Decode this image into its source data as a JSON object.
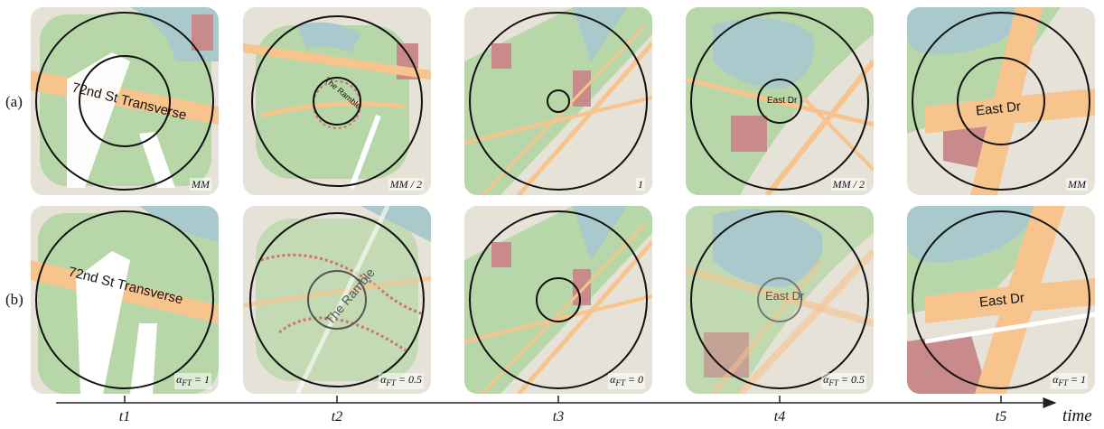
{
  "rows": [
    {
      "label": "(a)"
    },
    {
      "label": "(b)"
    }
  ],
  "captions_a": [
    "MM",
    "MM / 2",
    "1",
    "MM / 2",
    "MM"
  ],
  "captions_b": [
    {
      "alpha": "α",
      "sub": "FT",
      "value": " = 1"
    },
    {
      "alpha": "α",
      "sub": "FT",
      "value": " = 0.5"
    },
    {
      "alpha": "α",
      "sub": "FT",
      "value": " = 0"
    },
    {
      "alpha": "α",
      "sub": "FT",
      "value": " = 0.5"
    },
    {
      "alpha": "α",
      "sub": "FT",
      "value": " = 1"
    }
  ],
  "road_labels": {
    "a1": "72nd St Transverse",
    "b1": "72nd St Transverse",
    "a2": "The Ramble",
    "b2": "The Ramble",
    "a4": "East Dr",
    "b4": "East Dr",
    "a5": "East Dr",
    "b5": "East Dr"
  },
  "timeline": {
    "ticks": [
      "t1",
      "t2",
      "t3",
      "t4",
      "t5"
    ],
    "axis_label": "time"
  },
  "colors": {
    "park": "#b7d7a8",
    "water": "#a9c9cd",
    "road": "#f7c48e",
    "street": "#ffffff",
    "building": "#c88a8a",
    "block": "#e6e2d8"
  }
}
